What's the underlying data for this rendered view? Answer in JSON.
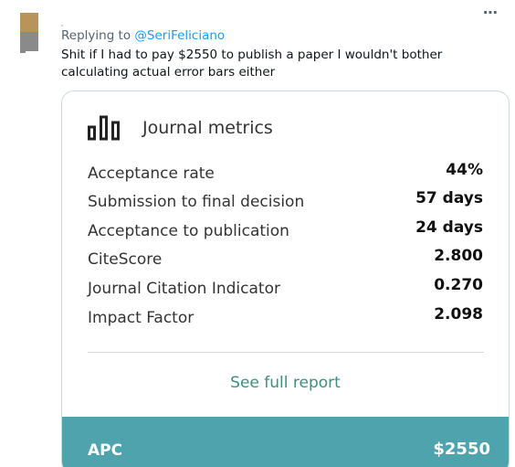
{
  "tweet": {
    "more_icon": "more-horizontal-icon",
    "reply_prefix": "Replying to",
    "reply_handle": "@SeriFeliciano",
    "text": "Shit if I had to pay $2550 to publish a paper I wouldn't bother calculating actual error bars either"
  },
  "card": {
    "icon": "bar-chart-icon",
    "title": "Journal metrics",
    "metrics": [
      {
        "label": "Acceptance rate",
        "value": "44%"
      },
      {
        "label": "Submission to final decision",
        "value": "57 days"
      },
      {
        "label": "Acceptance to publication",
        "value": "24 days"
      },
      {
        "label": "CiteScore",
        "value": "2.800"
      },
      {
        "label": "Journal Citation Indicator",
        "value": "0.270"
      },
      {
        "label": "Impact Factor",
        "value": "2.098"
      }
    ],
    "full_report_link": "See full report",
    "apc_label": "APC",
    "apc_value": "$2550"
  },
  "colors": {
    "link_blue": "#1d9bf0",
    "report_green": "#3e8e7e",
    "apc_teal": "#4ea3ad"
  }
}
